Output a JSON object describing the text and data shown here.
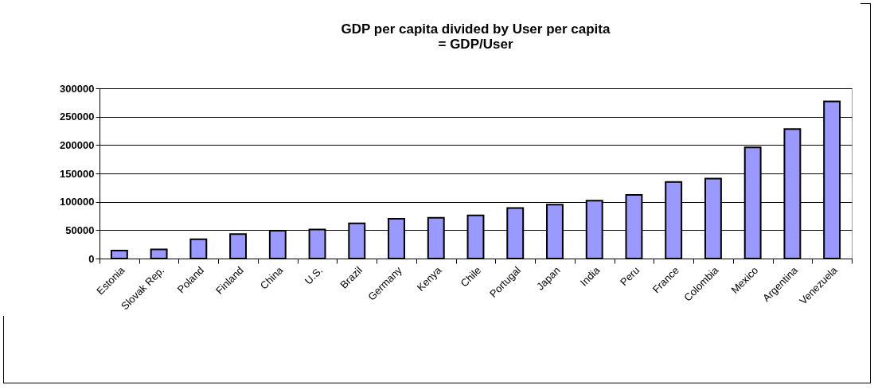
{
  "chart_data": {
    "type": "bar",
    "title": [
      "GDP per capita divided by User per capita",
      "= GDP/User"
    ],
    "categories": [
      "Estonia",
      "Slovak Rep.",
      "Poland",
      "Finland",
      "China",
      "U.S.",
      "Brazil",
      "Germany",
      "Kenya",
      "Chile",
      "Portugal",
      "Japan",
      "India",
      "Peru",
      "France",
      "Colombia",
      "Mexico",
      "Argentina",
      "Venezuela"
    ],
    "values": [
      14000,
      16000,
      34000,
      43000,
      49000,
      51000,
      62000,
      70000,
      72000,
      76000,
      89000,
      95000,
      102000,
      112000,
      135000,
      141000,
      196000,
      228000,
      277000
    ],
    "color": "#9999ff",
    "ylim": [
      0,
      300000
    ],
    "yticks": [
      0,
      50000,
      100000,
      150000,
      200000,
      250000,
      300000
    ],
    "grid": "y"
  }
}
